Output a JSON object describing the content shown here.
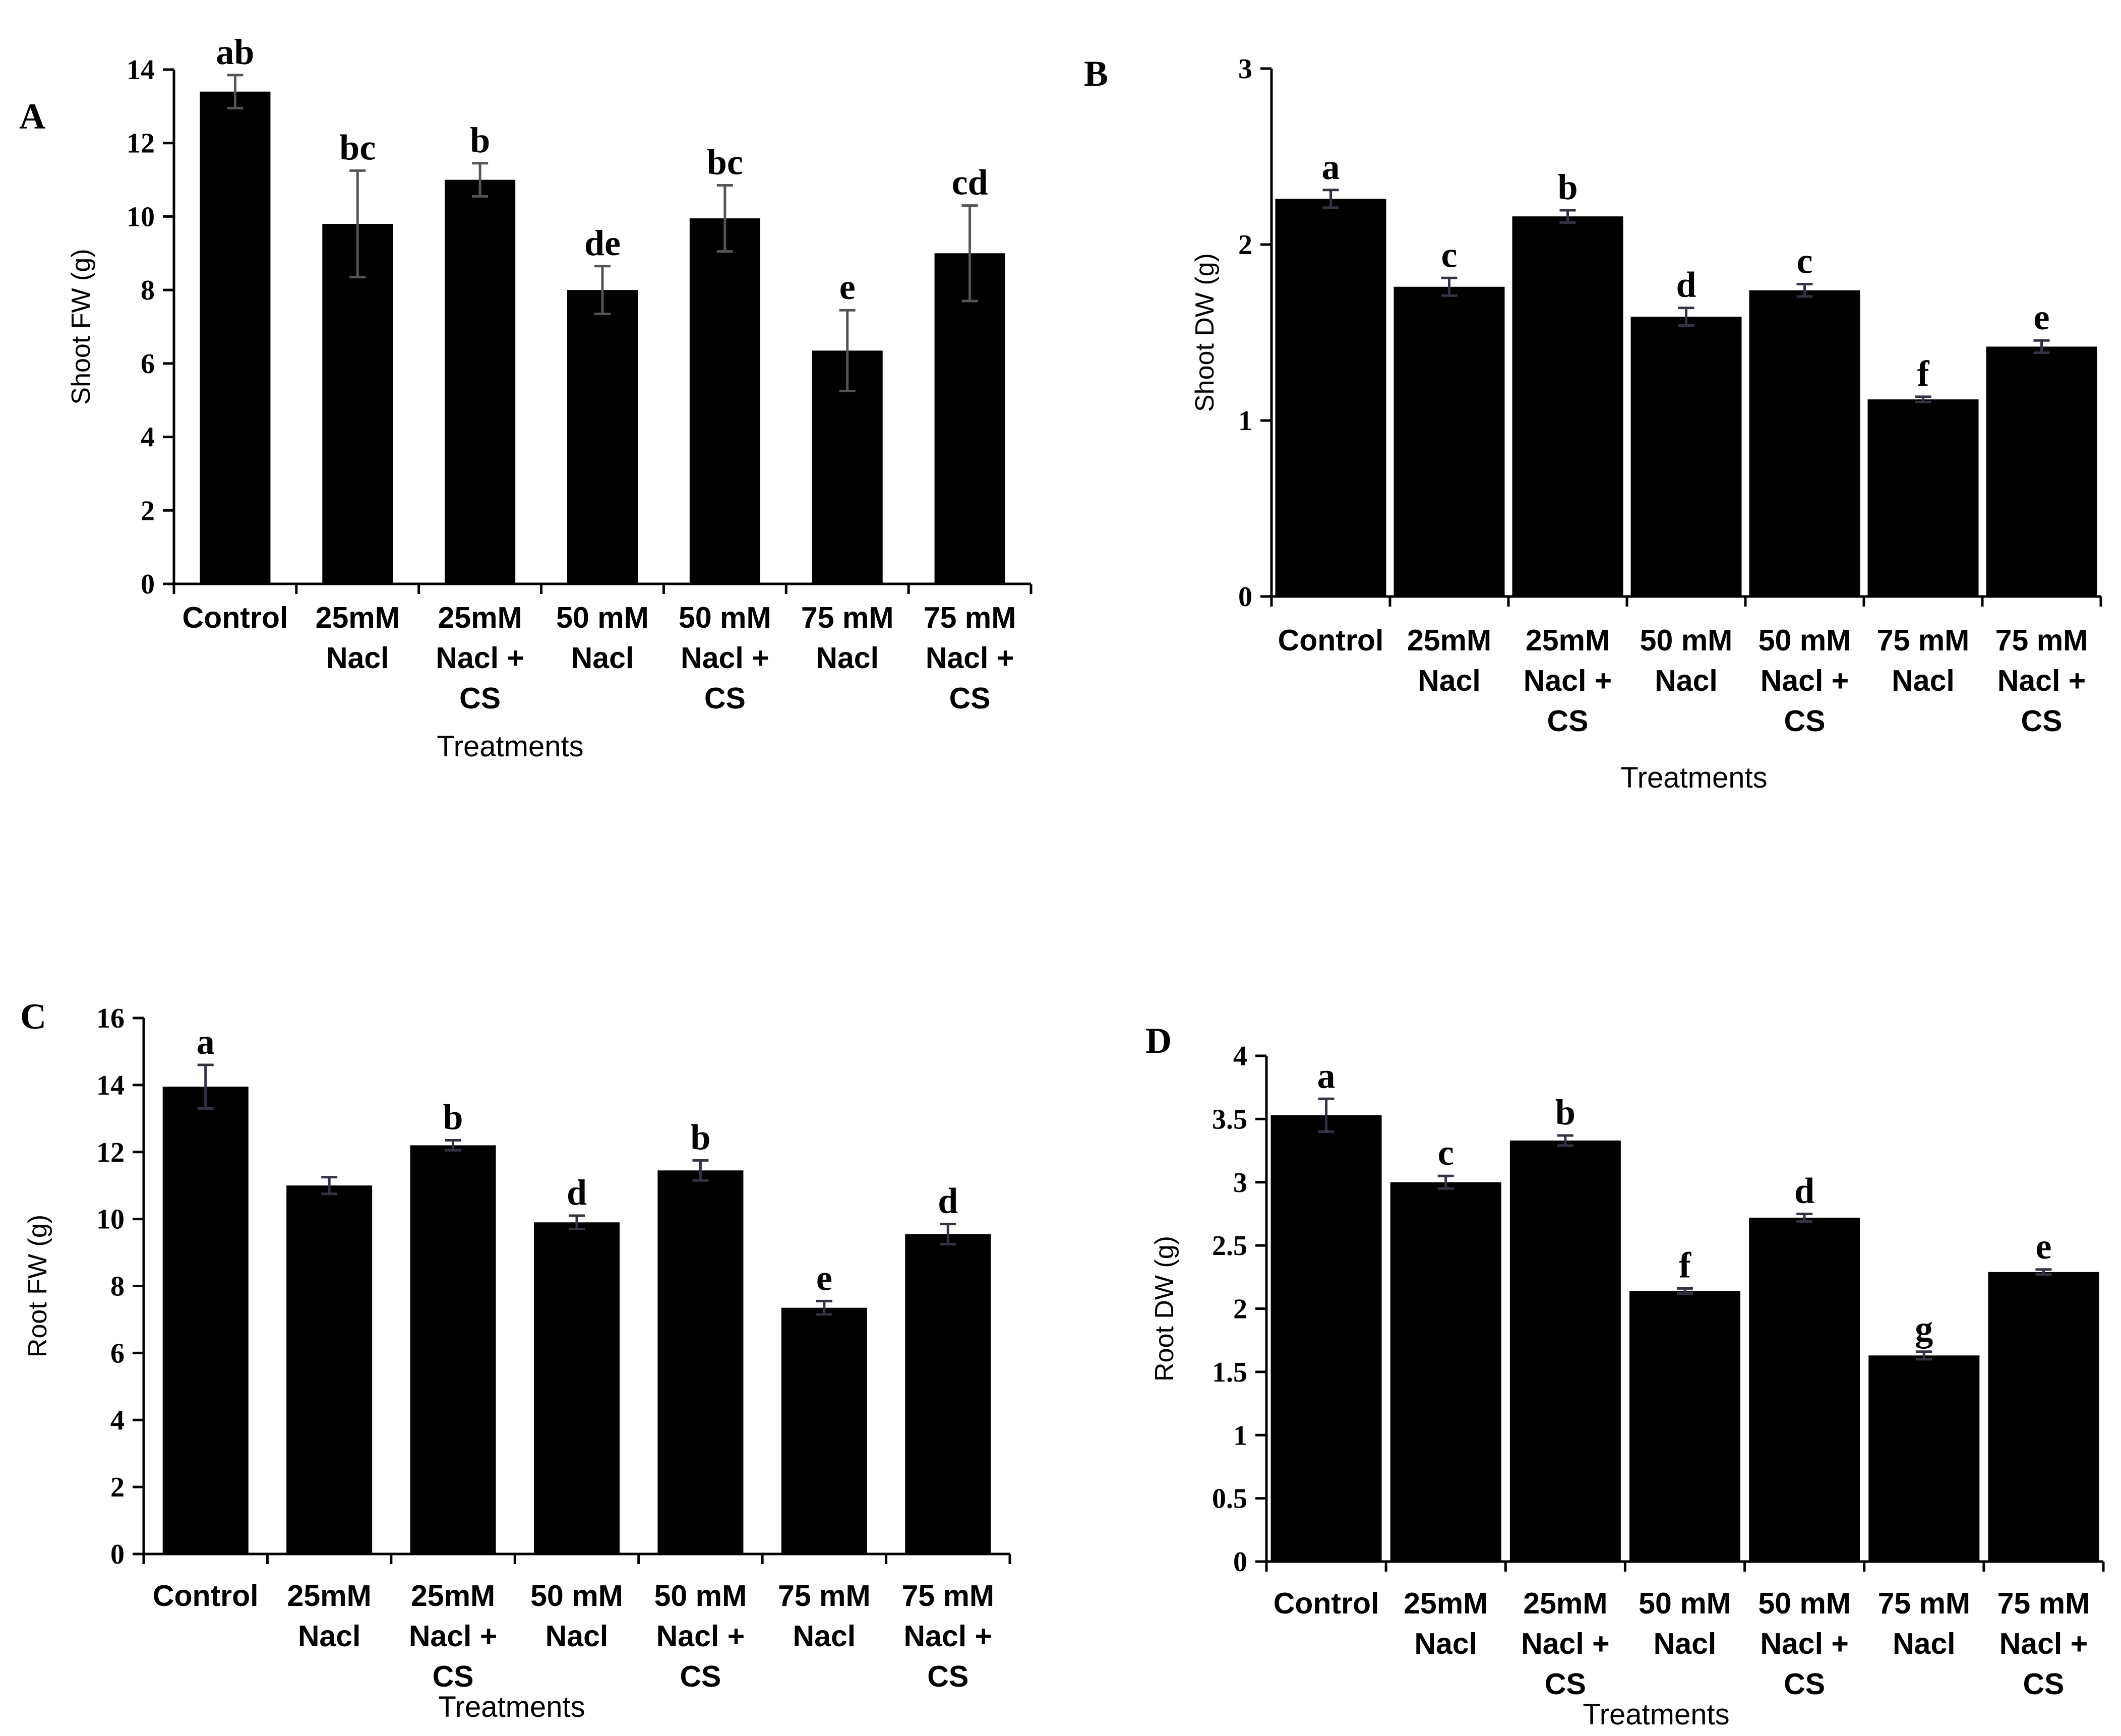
{
  "figure": {
    "background": "#ffffff",
    "bar_color": "#000000"
  },
  "chart_data": [
    {
      "panel": "A",
      "type": "bar",
      "ylabel": "Shoot FW (g)",
      "xlabel": "Treatments",
      "ylim": [
        0,
        14
      ],
      "yticks": [
        0,
        2,
        4,
        6,
        8,
        10,
        12,
        14
      ],
      "tick_labels": [
        "0",
        "2",
        "4",
        "6",
        "8",
        "10",
        "12",
        "14"
      ],
      "categories": [
        [
          "Control"
        ],
        [
          "25mM",
          "Nacl"
        ],
        [
          "25mM",
          "Nacl +",
          "CS"
        ],
        [
          "50 mM",
          "Nacl"
        ],
        [
          "50 mM",
          "Nacl +",
          "CS"
        ],
        [
          "75 mM",
          "Nacl"
        ],
        [
          "75 mM",
          "Nacl +",
          "CS"
        ]
      ],
      "values": [
        13.4,
        9.8,
        11.0,
        8.0,
        9.95,
        6.35,
        9.0
      ],
      "errors": [
        0.45,
        1.45,
        0.45,
        0.65,
        0.9,
        1.1,
        1.3
      ],
      "letters": [
        "ab",
        "bc",
        "b",
        "de",
        "bc",
        "e",
        "cd"
      ],
      "error_color": "#555555"
    },
    {
      "panel": "B",
      "type": "bar",
      "ylabel": "Shoot DW (g)",
      "xlabel": "Treatments",
      "ylim": [
        0,
        3
      ],
      "yticks": [
        0,
        1,
        2,
        3
      ],
      "tick_labels": [
        "0",
        "1",
        "2",
        "3"
      ],
      "categories": [
        [
          "Control"
        ],
        [
          "25mM",
          "Nacl"
        ],
        [
          "25mM",
          "Nacl +",
          "CS"
        ],
        [
          "50 mM",
          "Nacl"
        ],
        [
          "50 mM",
          "Nacl +",
          "CS"
        ],
        [
          "75 mM",
          "Nacl"
        ],
        [
          "75 mM",
          "Nacl +",
          "CS"
        ]
      ],
      "values": [
        2.26,
        1.76,
        2.16,
        1.59,
        1.74,
        1.12,
        1.42
      ],
      "errors": [
        0.05,
        0.05,
        0.035,
        0.05,
        0.035,
        0.015,
        0.035
      ],
      "letters": [
        "a",
        "c",
        "b",
        "d",
        "c",
        "f",
        "e"
      ],
      "error_color": "#333344"
    },
    {
      "panel": "C",
      "type": "bar",
      "ylabel": "Root FW (g)",
      "xlabel": "Treatments",
      "ylim": [
        0,
        16
      ],
      "yticks": [
        0,
        2,
        4,
        6,
        8,
        10,
        12,
        14,
        16
      ],
      "tick_labels": [
        "0",
        "2",
        "4",
        "6",
        "8",
        "10",
        "12",
        "14",
        "16"
      ],
      "categories": [
        [
          "Control"
        ],
        [
          "25mM",
          "Nacl"
        ],
        [
          "25mM",
          "Nacl +",
          "CS"
        ],
        [
          "50 mM",
          "Nacl"
        ],
        [
          "50 mM",
          "Nacl +",
          "CS"
        ],
        [
          "75 mM",
          "Nacl"
        ],
        [
          "75 mM",
          "Nacl +",
          "CS"
        ]
      ],
      "values": [
        13.95,
        11.0,
        12.2,
        9.9,
        11.45,
        7.35,
        9.55
      ],
      "errors": [
        0.65,
        0.25,
        0.15,
        0.2,
        0.3,
        0.2,
        0.3
      ],
      "letters": [
        "a",
        "",
        "b",
        "d",
        "b",
        "e",
        "d"
      ],
      "error_color": "#333344"
    },
    {
      "panel": "D",
      "type": "bar",
      "ylabel": "Root DW (g)",
      "xlabel": "Treatments",
      "ylim": [
        0,
        4
      ],
      "yticks": [
        0,
        0.5,
        1,
        1.5,
        2,
        2.5,
        3,
        3.5,
        4
      ],
      "tick_labels": [
        "0",
        "0.5",
        "1",
        "1.5",
        "2",
        "2.5",
        "3",
        "3.5",
        "4"
      ],
      "categories": [
        [
          "Control"
        ],
        [
          "25mM",
          "Nacl"
        ],
        [
          "25mM",
          "Nacl +",
          "CS"
        ],
        [
          "50 mM",
          "Nacl"
        ],
        [
          "50 mM",
          "Nacl +",
          "CS"
        ],
        [
          "75 mM",
          "Nacl"
        ],
        [
          "75 mM",
          "Nacl +",
          "CS"
        ]
      ],
      "values": [
        3.53,
        3.0,
        3.33,
        2.14,
        2.72,
        1.63,
        2.29
      ],
      "errors": [
        0.13,
        0.05,
        0.04,
        0.02,
        0.03,
        0.03,
        0.02
      ],
      "letters": [
        "a",
        "c",
        "b",
        "f",
        "d",
        "g",
        "e"
      ],
      "error_color": "#333344"
    }
  ]
}
